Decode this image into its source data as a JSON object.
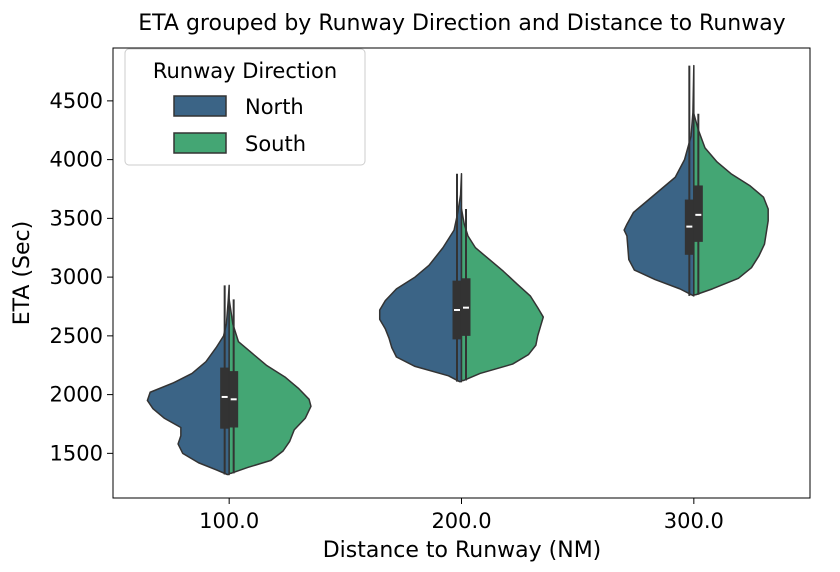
{
  "chart_data": {
    "type": "violin",
    "title": "ETA grouped by Runway Direction and Distance to Runway",
    "xlabel": "Distance to Runway (NM)",
    "ylabel": "ETA (Sec)",
    "categories": [
      "100.0",
      "200.0",
      "300.0"
    ],
    "yticks": [
      1500,
      2000,
      2500,
      3000,
      3500,
      4000,
      4500
    ],
    "ylim": [
      1120,
      4950
    ],
    "legend": {
      "title": "Runway Direction",
      "placement": "top-left"
    },
    "series": [
      {
        "name": "North",
        "color": "#3b6486",
        "violins": [
          {
            "category": "100.0",
            "min": 1320,
            "q1": 1710,
            "median": 1980,
            "q3": 2230,
            "max": 2930,
            "profile": [
              [
                1320,
                0.02
              ],
              [
                1360,
                0.14
              ],
              [
                1420,
                0.33
              ],
              [
                1500,
                0.5
              ],
              [
                1580,
                0.55
              ],
              [
                1650,
                0.52
              ],
              [
                1720,
                0.52
              ],
              [
                1800,
                0.7
              ],
              [
                1880,
                0.82
              ],
              [
                1950,
                0.88
              ],
              [
                2020,
                0.85
              ],
              [
                2100,
                0.6
              ],
              [
                2180,
                0.4
              ],
              [
                2280,
                0.25
              ],
              [
                2400,
                0.14
              ],
              [
                2500,
                0.06
              ],
              [
                2600,
                0.03
              ],
              [
                2800,
                0.01
              ],
              [
                2930,
                0.0
              ]
            ]
          },
          {
            "category": "200.0",
            "min": 2110,
            "q1": 2470,
            "median": 2720,
            "q3": 2970,
            "max": 3880,
            "profile": [
              [
                2110,
                0.02
              ],
              [
                2160,
                0.14
              ],
              [
                2240,
                0.5
              ],
              [
                2320,
                0.7
              ],
              [
                2400,
                0.75
              ],
              [
                2480,
                0.78
              ],
              [
                2560,
                0.82
              ],
              [
                2640,
                0.88
              ],
              [
                2720,
                0.88
              ],
              [
                2800,
                0.82
              ],
              [
                2900,
                0.7
              ],
              [
                3000,
                0.5
              ],
              [
                3100,
                0.35
              ],
              [
                3250,
                0.2
              ],
              [
                3400,
                0.08
              ],
              [
                3550,
                0.04
              ],
              [
                3700,
                0.01
              ],
              [
                3880,
                0.0
              ]
            ]
          },
          {
            "category": "300.0",
            "min": 2840,
            "q1": 3190,
            "median": 3430,
            "q3": 3660,
            "max": 4800,
            "profile": [
              [
                2840,
                0.0
              ],
              [
                2900,
                0.15
              ],
              [
                2980,
                0.42
              ],
              [
                3060,
                0.64
              ],
              [
                3150,
                0.7
              ],
              [
                3250,
                0.71
              ],
              [
                3350,
                0.72
              ],
              [
                3400,
                0.75
              ],
              [
                3450,
                0.72
              ],
              [
                3550,
                0.65
              ],
              [
                3650,
                0.5
              ],
              [
                3750,
                0.35
              ],
              [
                3850,
                0.2
              ],
              [
                4000,
                0.1
              ],
              [
                4200,
                0.03
              ],
              [
                4400,
                0.01
              ],
              [
                4800,
                0.0
              ]
            ]
          }
        ]
      },
      {
        "name": "South",
        "color": "#44a674",
        "violins": [
          {
            "category": "100.0",
            "min": 1330,
            "q1": 1720,
            "median": 1960,
            "q3": 2200,
            "max": 2810,
            "profile": [
              [
                1330,
                0.02
              ],
              [
                1380,
                0.2
              ],
              [
                1440,
                0.45
              ],
              [
                1520,
                0.58
              ],
              [
                1600,
                0.65
              ],
              [
                1700,
                0.7
              ],
              [
                1800,
                0.82
              ],
              [
                1900,
                0.88
              ],
              [
                1960,
                0.86
              ],
              [
                2050,
                0.75
              ],
              [
                2150,
                0.6
              ],
              [
                2250,
                0.4
              ],
              [
                2350,
                0.25
              ],
              [
                2450,
                0.1
              ],
              [
                2600,
                0.04
              ],
              [
                2810,
                0.0
              ]
            ]
          },
          {
            "category": "200.0",
            "min": 2120,
            "q1": 2500,
            "median": 2740,
            "q3": 2990,
            "max": 3580,
            "profile": [
              [
                2120,
                0.02
              ],
              [
                2180,
                0.2
              ],
              [
                2260,
                0.55
              ],
              [
                2340,
                0.72
              ],
              [
                2420,
                0.8
              ],
              [
                2500,
                0.82
              ],
              [
                2580,
                0.85
              ],
              [
                2660,
                0.88
              ],
              [
                2740,
                0.82
              ],
              [
                2840,
                0.74
              ],
              [
                2940,
                0.6
              ],
              [
                3050,
                0.45
              ],
              [
                3150,
                0.3
              ],
              [
                3250,
                0.15
              ],
              [
                3350,
                0.07
              ],
              [
                3450,
                0.03
              ],
              [
                3580,
                0.0
              ]
            ]
          },
          {
            "category": "300.0",
            "min": 2850,
            "q1": 3300,
            "median": 3530,
            "q3": 3780,
            "max": 4390,
            "profile": [
              [
                2850,
                0.02
              ],
              [
                2900,
                0.2
              ],
              [
                2990,
                0.48
              ],
              [
                3080,
                0.62
              ],
              [
                3180,
                0.7
              ],
              [
                3280,
                0.76
              ],
              [
                3380,
                0.78
              ],
              [
                3480,
                0.8
              ],
              [
                3580,
                0.8
              ],
              [
                3680,
                0.75
              ],
              [
                3780,
                0.6
              ],
              [
                3880,
                0.4
              ],
              [
                3980,
                0.25
              ],
              [
                4100,
                0.12
              ],
              [
                4250,
                0.05
              ],
              [
                4390,
                0.0
              ]
            ]
          }
        ]
      }
    ]
  }
}
